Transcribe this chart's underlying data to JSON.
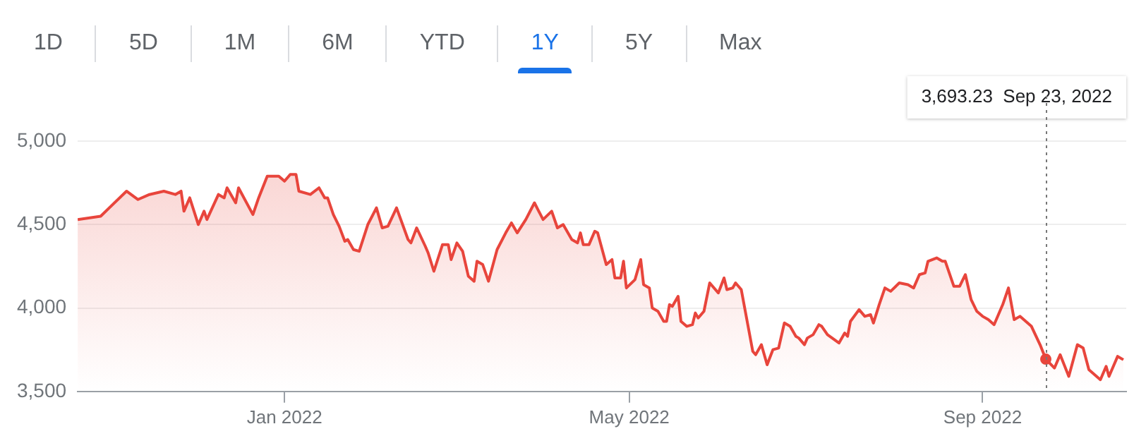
{
  "chart_data": {
    "type": "area",
    "x": [
      "2021-10-21",
      "2021-10-29",
      "2021-11-01",
      "2021-11-07",
      "2021-11-11",
      "2021-11-15",
      "2021-11-20",
      "2021-11-24",
      "2021-11-26",
      "2021-11-27",
      "2021-11-29",
      "2021-12-02",
      "2021-12-04",
      "2021-12-05",
      "2021-12-09",
      "2021-12-11",
      "2021-12-12",
      "2021-12-15",
      "2021-12-16",
      "2021-12-21",
      "2021-12-23",
      "2021-12-26",
      "2021-12-30",
      "2022-01-01",
      "2022-01-03",
      "2022-01-05",
      "2022-01-06",
      "2022-01-10",
      "2022-01-13",
      "2022-01-15",
      "2022-01-16",
      "2022-01-18",
      "2022-01-20",
      "2022-01-22",
      "2022-01-23",
      "2022-01-25",
      "2022-01-27",
      "2022-01-30",
      "2022-02-02",
      "2022-02-04",
      "2022-02-06",
      "2022-02-09",
      "2022-02-13",
      "2022-02-14",
      "2022-02-16",
      "2022-02-19",
      "2022-02-20",
      "2022-02-22",
      "2022-02-25",
      "2022-02-27",
      "2022-02-28",
      "2022-03-02",
      "2022-03-04",
      "2022-03-06",
      "2022-03-08",
      "2022-03-09",
      "2022-03-11",
      "2022-03-13",
      "2022-03-16",
      "2022-03-19",
      "2022-03-21",
      "2022-03-23",
      "2022-03-26",
      "2022-03-29",
      "2022-04-01",
      "2022-04-04",
      "2022-04-06",
      "2022-04-08",
      "2022-04-11",
      "2022-04-13",
      "2022-04-14",
      "2022-04-15",
      "2022-04-17",
      "2022-04-19",
      "2022-04-20",
      "2022-04-23",
      "2022-04-25",
      "2022-04-26",
      "2022-04-28",
      "2022-04-29",
      "2022-04-30",
      "2022-05-03",
      "2022-05-05",
      "2022-05-06",
      "2022-05-08",
      "2022-05-09",
      "2022-05-11",
      "2022-05-13",
      "2022-05-14",
      "2022-05-15",
      "2022-05-16",
      "2022-05-18",
      "2022-05-19",
      "2022-05-21",
      "2022-05-23",
      "2022-05-24",
      "2022-05-25",
      "2022-05-27",
      "2022-05-29",
      "2022-06-01",
      "2022-06-03",
      "2022-06-04",
      "2022-06-06",
      "2022-06-07",
      "2022-06-09",
      "2022-06-13",
      "2022-06-14",
      "2022-06-16",
      "2022-06-18",
      "2022-06-20",
      "2022-06-22",
      "2022-06-24",
      "2022-06-26",
      "2022-06-28",
      "2022-06-29",
      "2022-07-01",
      "2022-07-02",
      "2022-07-04",
      "2022-07-06",
      "2022-07-07",
      "2022-07-09",
      "2022-07-13",
      "2022-07-15",
      "2022-07-16",
      "2022-07-17",
      "2022-07-20",
      "2022-07-22",
      "2022-07-24",
      "2022-07-25",
      "2022-07-27",
      "2022-07-29",
      "2022-07-31",
      "2022-08-03",
      "2022-08-06",
      "2022-08-08",
      "2022-08-10",
      "2022-08-12",
      "2022-08-13",
      "2022-08-16",
      "2022-08-18",
      "2022-08-19",
      "2022-08-22",
      "2022-08-24",
      "2022-08-26",
      "2022-08-28",
      "2022-08-30",
      "2022-09-01",
      "2022-09-03",
      "2022-09-05",
      "2022-09-07",
      "2022-09-08",
      "2022-09-10",
      "2022-09-12",
      "2022-09-14",
      "2022-09-18",
      "2022-09-21",
      "2022-09-23",
      "2022-09-26",
      "2022-09-28",
      "2022-10-01",
      "2022-10-04",
      "2022-10-06",
      "2022-10-08",
      "2022-10-12",
      "2022-10-14",
      "2022-10-15",
      "2022-10-18",
      "2022-10-20"
    ],
    "values": [
      4530,
      4550,
      4600,
      4700,
      4650,
      4680,
      4700,
      4680,
      4700,
      4580,
      4660,
      4500,
      4580,
      4530,
      4680,
      4660,
      4720,
      4630,
      4720,
      4560,
      4660,
      4790,
      4790,
      4760,
      4800,
      4800,
      4700,
      4680,
      4720,
      4660,
      4660,
      4560,
      4490,
      4400,
      4410,
      4350,
      4340,
      4500,
      4600,
      4480,
      4490,
      4600,
      4410,
      4390,
      4480,
      4370,
      4330,
      4220,
      4380,
      4380,
      4290,
      4390,
      4340,
      4190,
      4160,
      4280,
      4260,
      4160,
      4350,
      4450,
      4510,
      4450,
      4530,
      4630,
      4530,
      4580,
      4480,
      4500,
      4410,
      4390,
      4450,
      4380,
      4380,
      4460,
      4450,
      4260,
      4290,
      4180,
      4180,
      4280,
      4120,
      4170,
      4290,
      4140,
      4120,
      4000,
      3980,
      3920,
      3920,
      4020,
      4010,
      4070,
      3920,
      3890,
      3900,
      3970,
      3940,
      3980,
      4150,
      4090,
      4180,
      4110,
      4120,
      4150,
      4110,
      3740,
      3720,
      3780,
      3660,
      3750,
      3760,
      3910,
      3890,
      3830,
      3820,
      3780,
      3820,
      3840,
      3900,
      3890,
      3840,
      3790,
      3850,
      3830,
      3920,
      3990,
      3950,
      3960,
      3910,
      4020,
      4120,
      4100,
      4150,
      4140,
      4120,
      4200,
      4210,
      4280,
      4300,
      4280,
      4280,
      4130,
      4130,
      4200,
      4050,
      3980,
      3950,
      3930,
      3900,
      3980,
      4020,
      4120,
      3930,
      3950,
      3890,
      3780,
      3693.23,
      3640,
      3720,
      3590,
      3780,
      3760,
      3630,
      3570,
      3650,
      3590,
      3710,
      3690
    ],
    "color": "#e8453c",
    "xlim": [
      "2021-10-21",
      "2022-10-21"
    ],
    "xticks": [
      {
        "value": "2022-01-01",
        "label": "Jan 2022"
      },
      {
        "value": "2022-05-01",
        "label": "May 2022"
      },
      {
        "value": "2022-09-01",
        "label": "Sep 2022"
      }
    ],
    "ylim": [
      3500,
      5000
    ],
    "yticks": [
      {
        "value": 3500,
        "label": "3,500"
      },
      {
        "value": 4000,
        "label": "4,000"
      },
      {
        "value": 4500,
        "label": "4,500"
      },
      {
        "value": 5000,
        "label": "5,000"
      }
    ],
    "grid": "y",
    "legend": false,
    "marker": "none",
    "ref_lines": [
      {
        "axis": "x",
        "value": "2022-09-23",
        "color": "#777777",
        "line_style": "dotted"
      }
    ],
    "annotations": [
      "1D",
      "5D",
      "1M",
      "6M",
      "YTD",
      "1Y",
      "5Y",
      "Max",
      "3,693.23  Sep 23, 2022"
    ]
  }
}
